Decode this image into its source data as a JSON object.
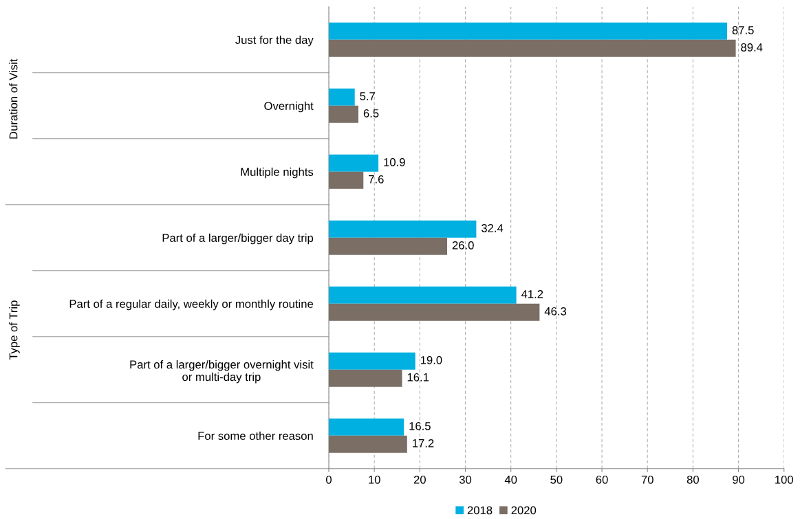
{
  "chart_data": {
    "type": "bar",
    "orientation": "horizontal",
    "categories": [
      "Just for the day",
      "Overnight",
      "Multiple nights",
      "Part of a larger/bigger day trip",
      "Part of a regular daily, weekly or monthly routine",
      "Part of a larger/bigger overnight visit\nor multi-day trip",
      "For some other reason"
    ],
    "series": [
      {
        "name": "2018",
        "color": "#00b0e0",
        "values": [
          87.5,
          5.7,
          10.9,
          32.4,
          41.2,
          19.0,
          16.5
        ],
        "value_labels": [
          "87.5",
          "5.7",
          "10.9",
          "32.4",
          "41.2",
          "19.0",
          "16.5"
        ]
      },
      {
        "name": "2020",
        "color": "#7a6e65",
        "values": [
          89.4,
          6.5,
          7.6,
          26.0,
          46.3,
          16.1,
          17.2
        ],
        "value_labels": [
          "89.4",
          "6.5",
          "7.6",
          "26.0",
          "46.3",
          "16.1",
          "17.2"
        ]
      }
    ],
    "xlim": [
      0,
      100
    ],
    "xticks": [
      0,
      10,
      20,
      30,
      40,
      50,
      60,
      70,
      80,
      90,
      100
    ],
    "grid": "x",
    "legend": "bottom",
    "annotations": [
      "Duration of Visit",
      "Type of Trip"
    ]
  }
}
